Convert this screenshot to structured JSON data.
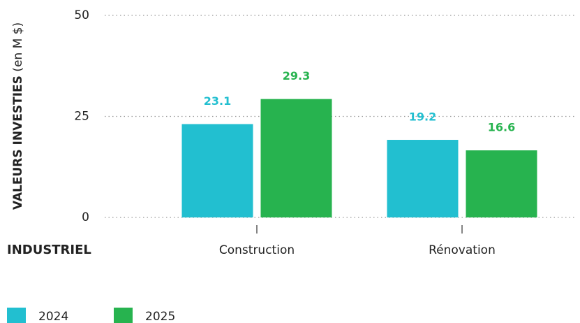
{
  "chart_data": {
    "type": "bar",
    "ylabel": "VALEURS INVESTIES",
    "ylabel_unit": "(en M $)",
    "x_group_label": "INDUSTRIEL",
    "categories": [
      "Construction",
      "Rénovation"
    ],
    "series": [
      {
        "name": "2024",
        "color": "#22bfd0",
        "values": [
          23.1,
          19.2
        ]
      },
      {
        "name": "2025",
        "color": "#27b34f",
        "values": [
          29.3,
          16.6
        ]
      }
    ],
    "ylim": [
      0,
      50
    ],
    "yticks": [
      0,
      25,
      50
    ],
    "grid": true,
    "legend": "bottom-left"
  }
}
